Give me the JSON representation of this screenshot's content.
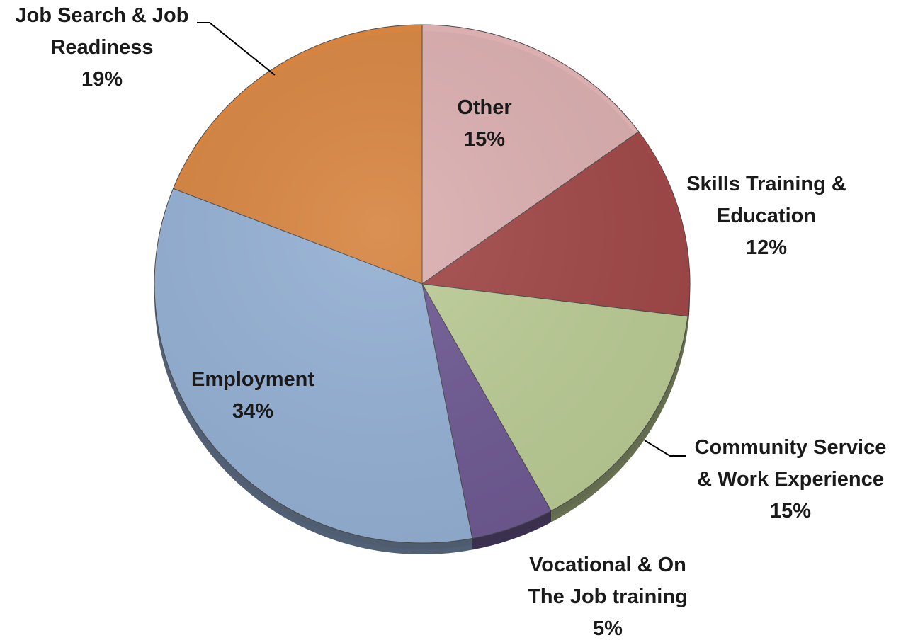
{
  "chart_data": {
    "type": "pie",
    "title": "",
    "start_angle_deg": 0,
    "direction": "clockwise",
    "slices": [
      {
        "label_lines": [
          "Other"
        ],
        "value": 15,
        "percent_text": "15%",
        "color": "#dbaeaf",
        "label_mode": "inside",
        "label_key": "other"
      },
      {
        "label_lines": [
          "Skills Training &",
          "Education"
        ],
        "value": 12,
        "percent_text": "12%",
        "color": "#a04646",
        "label_mode": "outside",
        "label_key": "skills"
      },
      {
        "label_lines": [
          "Community Service",
          "& Work Experience"
        ],
        "value": 15,
        "percent_text": "15%",
        "color": "#bacb94",
        "label_mode": "outside-leader",
        "label_key": "community"
      },
      {
        "label_lines": [
          "Vocational & On",
          "The Job training"
        ],
        "value": 5,
        "percent_text": "5%",
        "color": "#6d5891",
        "label_mode": "outside",
        "label_key": "vocational"
      },
      {
        "label_lines": [
          "Employment"
        ],
        "value": 34,
        "percent_text": "34%",
        "color": "#93afd3",
        "label_mode": "inside",
        "label_key": "employment"
      },
      {
        "label_lines": [
          "Job Search & Job",
          "Readiness"
        ],
        "value": 19,
        "percent_text": "19%",
        "color": "#d6843f",
        "label_mode": "outside-leader",
        "label_key": "jobsearch"
      }
    ]
  }
}
